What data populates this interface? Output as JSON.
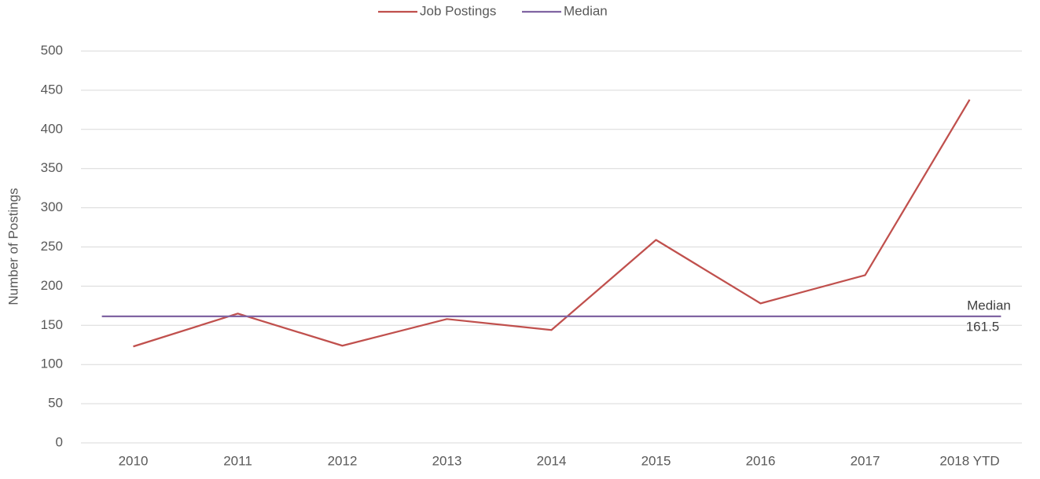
{
  "chart_data": {
    "type": "line",
    "y_axis_label": "Number of Postings",
    "categories": [
      "2010",
      "2011",
      "2012",
      "2013",
      "2014",
      "2015",
      "2016",
      "2017",
      "2018 YTD"
    ],
    "series": [
      {
        "name": "Job Postings",
        "color": "#c0504d",
        "values": [
          123,
          165,
          124,
          158,
          144,
          259,
          178,
          214,
          438
        ]
      },
      {
        "name": "Median",
        "color": "#8064a2",
        "values": [
          161.5,
          161.5,
          161.5,
          161.5,
          161.5,
          161.5,
          161.5,
          161.5,
          161.5
        ]
      }
    ],
    "ylim": [
      0,
      500
    ],
    "yticks": [
      0,
      50,
      100,
      150,
      200,
      250,
      300,
      350,
      400,
      450,
      500
    ],
    "grid": true,
    "legend": "top"
  }
}
